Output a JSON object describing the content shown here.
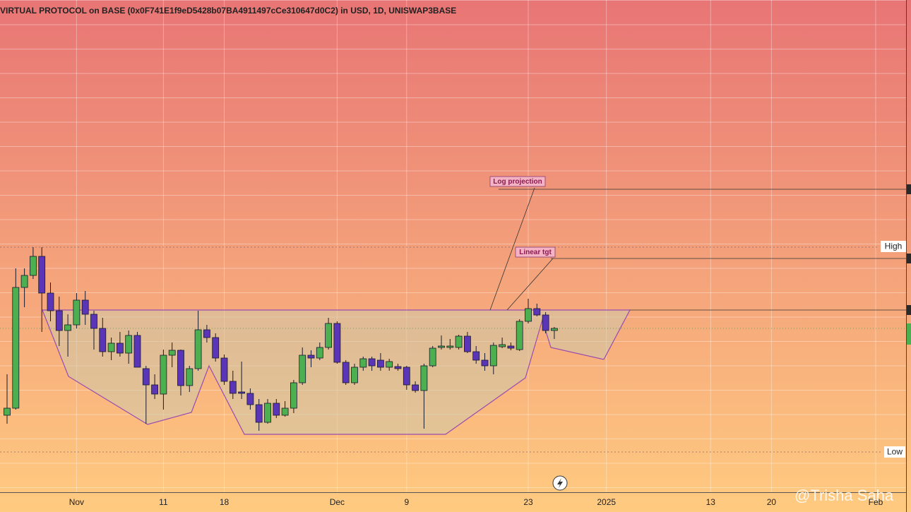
{
  "chart_data": {
    "type": "candlestick",
    "title": "VIRTUAL PROTOCOL on BASE (0x0F741E1f9eD5428b07BA4911497cCe310647d0C2) in USD, 1D, UNISWAP3BASE",
    "categories": [
      null,
      null,
      null,
      null,
      null,
      null,
      null,
      null,
      "Nov",
      null,
      null,
      null,
      null,
      null,
      null,
      null,
      null,
      null,
      "11",
      null,
      null,
      null,
      null,
      null,
      null,
      "18",
      null,
      null,
      null,
      null,
      null,
      null,
      null,
      null,
      null,
      null,
      null,
      null,
      "Dec",
      null,
      null,
      null,
      null,
      null,
      null,
      null,
      "9",
      null,
      null,
      null,
      null,
      null,
      null,
      null,
      null,
      null,
      null,
      null,
      null,
      null,
      "23",
      null,
      null,
      null,
      null,
      null,
      null,
      null,
      null,
      "2025",
      null,
      null,
      null,
      null,
      null,
      null,
      null,
      null,
      null,
      null,
      null,
      "13",
      null,
      null,
      null,
      null,
      null,
      null,
      "20",
      null,
      null,
      null,
      null,
      null,
      null,
      null,
      null,
      null,
      null,
      null,
      "Feb"
    ],
    "open": [
      112,
      122,
      293,
      310,
      337,
      285,
      260,
      232,
      240,
      275,
      255,
      235,
      202,
      214,
      200,
      225,
      178,
      155,
      142,
      197,
      204,
      154,
      178,
      233,
      222,
      193,
      160,
      145,
      143,
      127,
      102,
      129,
      112,
      122,
      158,
      197,
      193,
      208,
      242,
      187,
      158,
      180,
      192,
      190,
      180,
      181,
      180,
      155,
      147,
      182,
      208,
      208,
      208,
      224,
      202,
      190,
      182,
      209,
      210,
      205,
      245,
      263,
      254,
      232,
      null,
      null,
      null,
      null,
      null,
      null,
      null,
      null,
      null,
      null,
      null,
      null,
      null,
      null,
      null,
      null,
      null,
      null,
      null,
      null,
      null,
      null,
      null,
      null,
      null,
      null,
      null,
      null,
      null,
      null,
      null,
      null,
      null,
      null,
      null,
      null,
      null
    ],
    "high": [
      170,
      320,
      320,
      350,
      350,
      300,
      280,
      255,
      285,
      288,
      260,
      250,
      222,
      230,
      232,
      230,
      182,
      170,
      205,
      215,
      205,
      182,
      260,
      240,
      228,
      198,
      175,
      188,
      150,
      135,
      135,
      135,
      132,
      162,
      208,
      204,
      215,
      250,
      245,
      190,
      185,
      195,
      195,
      200,
      192,
      185,
      182,
      160,
      185,
      210,
      225,
      220,
      226,
      230,
      210,
      200,
      215,
      222,
      215,
      248,
      277,
      270,
      258,
      237,
      null,
      null,
      null,
      null,
      null,
      null,
      null,
      null,
      null,
      null,
      null,
      null,
      null,
      null,
      null,
      null,
      null,
      null,
      null,
      null,
      null,
      null,
      null,
      null,
      null,
      null,
      null,
      null,
      null,
      null,
      null,
      null,
      null,
      null,
      null,
      null,
      null
    ],
    "low": [
      100,
      120,
      265,
      305,
      230,
      245,
      210,
      195,
      235,
      240,
      205,
      195,
      190,
      195,
      185,
      180,
      100,
      135,
      120,
      180,
      140,
      145,
      175,
      215,
      188,
      155,
      135,
      135,
      120,
      90,
      100,
      108,
      110,
      115,
      155,
      180,
      190,
      205,
      185,
      155,
      155,
      175,
      175,
      175,
      175,
      175,
      148,
      144,
      93,
      180,
      205,
      205,
      205,
      200,
      185,
      175,
      170,
      207,
      204,
      203,
      242,
      252,
      228,
      220,
      null,
      null,
      null,
      null,
      null,
      null,
      null,
      null,
      null,
      null,
      null,
      null,
      null,
      null,
      null,
      null,
      null,
      null,
      null,
      null,
      null,
      null,
      null,
      null,
      null,
      null,
      null,
      null,
      null,
      null,
      null,
      null,
      null,
      null,
      null,
      null,
      null
    ],
    "close": [
      122,
      293,
      310,
      337,
      285,
      260,
      232,
      240,
      275,
      255,
      235,
      202,
      214,
      200,
      225,
      180,
      155,
      142,
      197,
      204,
      154,
      178,
      233,
      222,
      193,
      160,
      143,
      143,
      127,
      102,
      129,
      112,
      122,
      158,
      197,
      193,
      208,
      242,
      187,
      158,
      180,
      192,
      182,
      180,
      188,
      178,
      155,
      147,
      182,
      207,
      210,
      210,
      224,
      202,
      190,
      182,
      211,
      212,
      207,
      245,
      263,
      254,
      232,
      235,
      null,
      null,
      null,
      null,
      null,
      null,
      null,
      null,
      null,
      null,
      null,
      null,
      null,
      null,
      null,
      null,
      null,
      null,
      null,
      null,
      null,
      null,
      null,
      null,
      null,
      null,
      null,
      null,
      null,
      null,
      null,
      null,
      null,
      null,
      null,
      null,
      null
    ],
    "up_color": "#4cb050",
    "down_color": "#5b35b8",
    "ylim": [
      3,
      700
    ],
    "annotations": [
      "Log projection",
      "Linear tgt"
    ],
    "level_labels": [
      "High",
      "Low"
    ],
    "watermark": "@Trisha Saha"
  }
}
